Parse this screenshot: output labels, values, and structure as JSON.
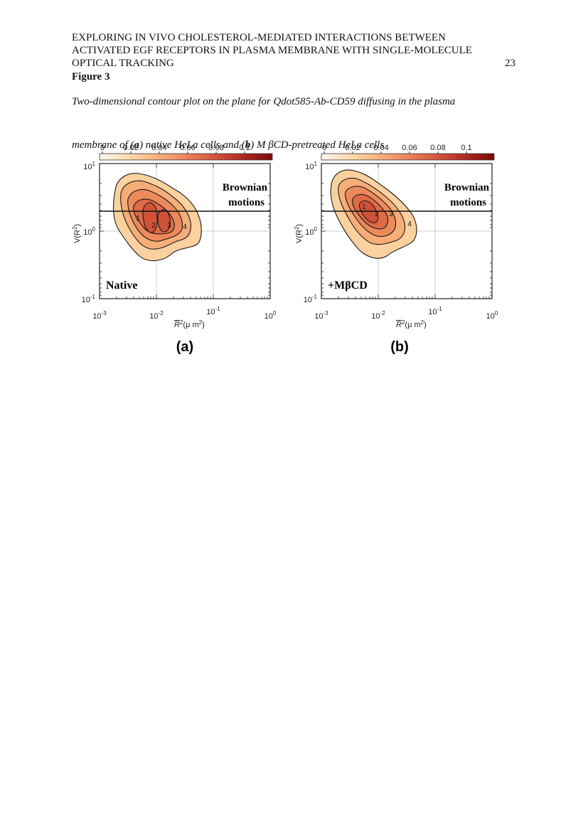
{
  "header": {
    "line1": "EXPLORING IN VIVO CHOLESTEROL-MEDIATED INTERACTIONS BETWEEN",
    "line2": "ACTIVATED EGF RECEPTORS IN PLASMA MEMBRANE WITH SINGLE-MOLECULE",
    "line3": "OPTICAL TRACKING",
    "page_number": "23"
  },
  "figure": {
    "label": "Figure 3",
    "caption_line1": "Two-dimensional contour plot on the plane for Qdot585-Ab-CD59 diffusing in the plasma",
    "caption_line2_pre": "membrane of (",
    "caption_a": "a",
    "caption_line2_mid": ") native HeLa cells and (",
    "caption_b": "b",
    "caption_line2_post": ") M βCD-pretreated HeLa cells"
  },
  "chart_data": [
    {
      "type": "heatmap",
      "panel_label": "(a)",
      "condition_label": "Native",
      "annotation": [
        "Brownian",
        "motions"
      ],
      "xlabel": "R²(μm²)",
      "ylabel": "V(R²)",
      "x_scale": "log",
      "y_scale": "log",
      "xlim": [
        0.001,
        1
      ],
      "ylim": [
        0.1,
        10
      ],
      "x_ticks": [
        "10-3",
        "10-2",
        "10-1",
        "100"
      ],
      "y_ticks": [
        "101",
        "100",
        "10-1"
      ],
      "colorbar": {
        "ticks": [
          "0",
          "0.02",
          "0.04",
          "0.06",
          "0.08",
          "0.1"
        ],
        "range": [
          0,
          0.11
        ],
        "colors": [
          "#fff8ee",
          "#fbd3a3",
          "#f3a070",
          "#e06848",
          "#b83028",
          "#7a0a08"
        ]
      },
      "brownian_line_y": 1.8,
      "contour_labels": [
        "1",
        "2",
        "3",
        "4"
      ],
      "grid": true
    },
    {
      "type": "heatmap",
      "panel_label": "(b)",
      "condition_label": "+MβCD",
      "annotation": [
        "Brownian",
        "motions"
      ],
      "xlabel": "R²(μm²)",
      "ylabel": "V(R²)",
      "x_scale": "log",
      "y_scale": "log",
      "xlim": [
        0.001,
        1
      ],
      "ylim": [
        0.1,
        10
      ],
      "x_ticks": [
        "10-3",
        "10-2",
        "10-1",
        "100"
      ],
      "y_ticks": [
        "101",
        "100",
        "10-1"
      ],
      "colorbar": {
        "ticks": [
          "0",
          "0.02",
          "0.04",
          "0.06",
          "0.08",
          "0.1"
        ],
        "range": [
          0,
          0.11
        ],
        "colors": [
          "#fff8ee",
          "#fbd3a3",
          "#f3a070",
          "#e06848",
          "#b83028",
          "#7a0a08"
        ]
      },
      "brownian_line_y": 1.8,
      "contour_labels": [
        "1",
        "2",
        "3",
        "4"
      ],
      "grid": true
    }
  ]
}
